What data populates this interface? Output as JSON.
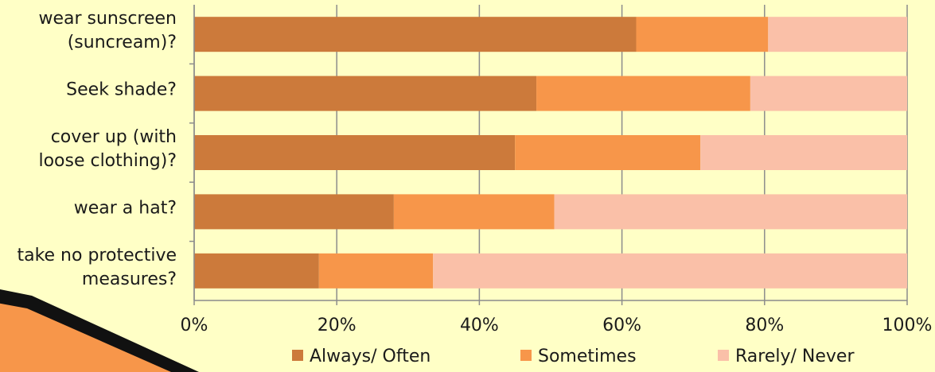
{
  "chart_data": {
    "type": "stacked_bar_horizontal",
    "categories": [
      [
        "wear sunscreen",
        "(suncream)?"
      ],
      [
        "Seek shade?"
      ],
      [
        "cover up (with",
        "loose clothing)?"
      ],
      [
        "wear a hat?"
      ],
      [
        "take no protective",
        "measures?"
      ]
    ],
    "series": [
      {
        "name": "Always/ Often",
        "color": "#cc7a3b",
        "values": [
          62,
          48,
          45,
          28,
          17.5
        ]
      },
      {
        "name": "Sometimes",
        "color": "#f7964a",
        "values": [
          18.5,
          30,
          26,
          22.5,
          16
        ]
      },
      {
        "name": "Rarely/ Never",
        "color": "#fac0a8",
        "values": [
          19.5,
          22,
          29,
          49.5,
          66.5
        ]
      }
    ],
    "xlim": [
      0,
      100
    ],
    "xticks": [
      {
        "value": 0,
        "label": "0%"
      },
      {
        "value": 20,
        "label": "20%"
      },
      {
        "value": 40,
        "label": "40%"
      },
      {
        "value": 60,
        "label": "60%"
      },
      {
        "value": 80,
        "label": "80%"
      },
      {
        "value": 100,
        "label": "100%"
      }
    ],
    "grid": true,
    "legend": "bottom"
  }
}
